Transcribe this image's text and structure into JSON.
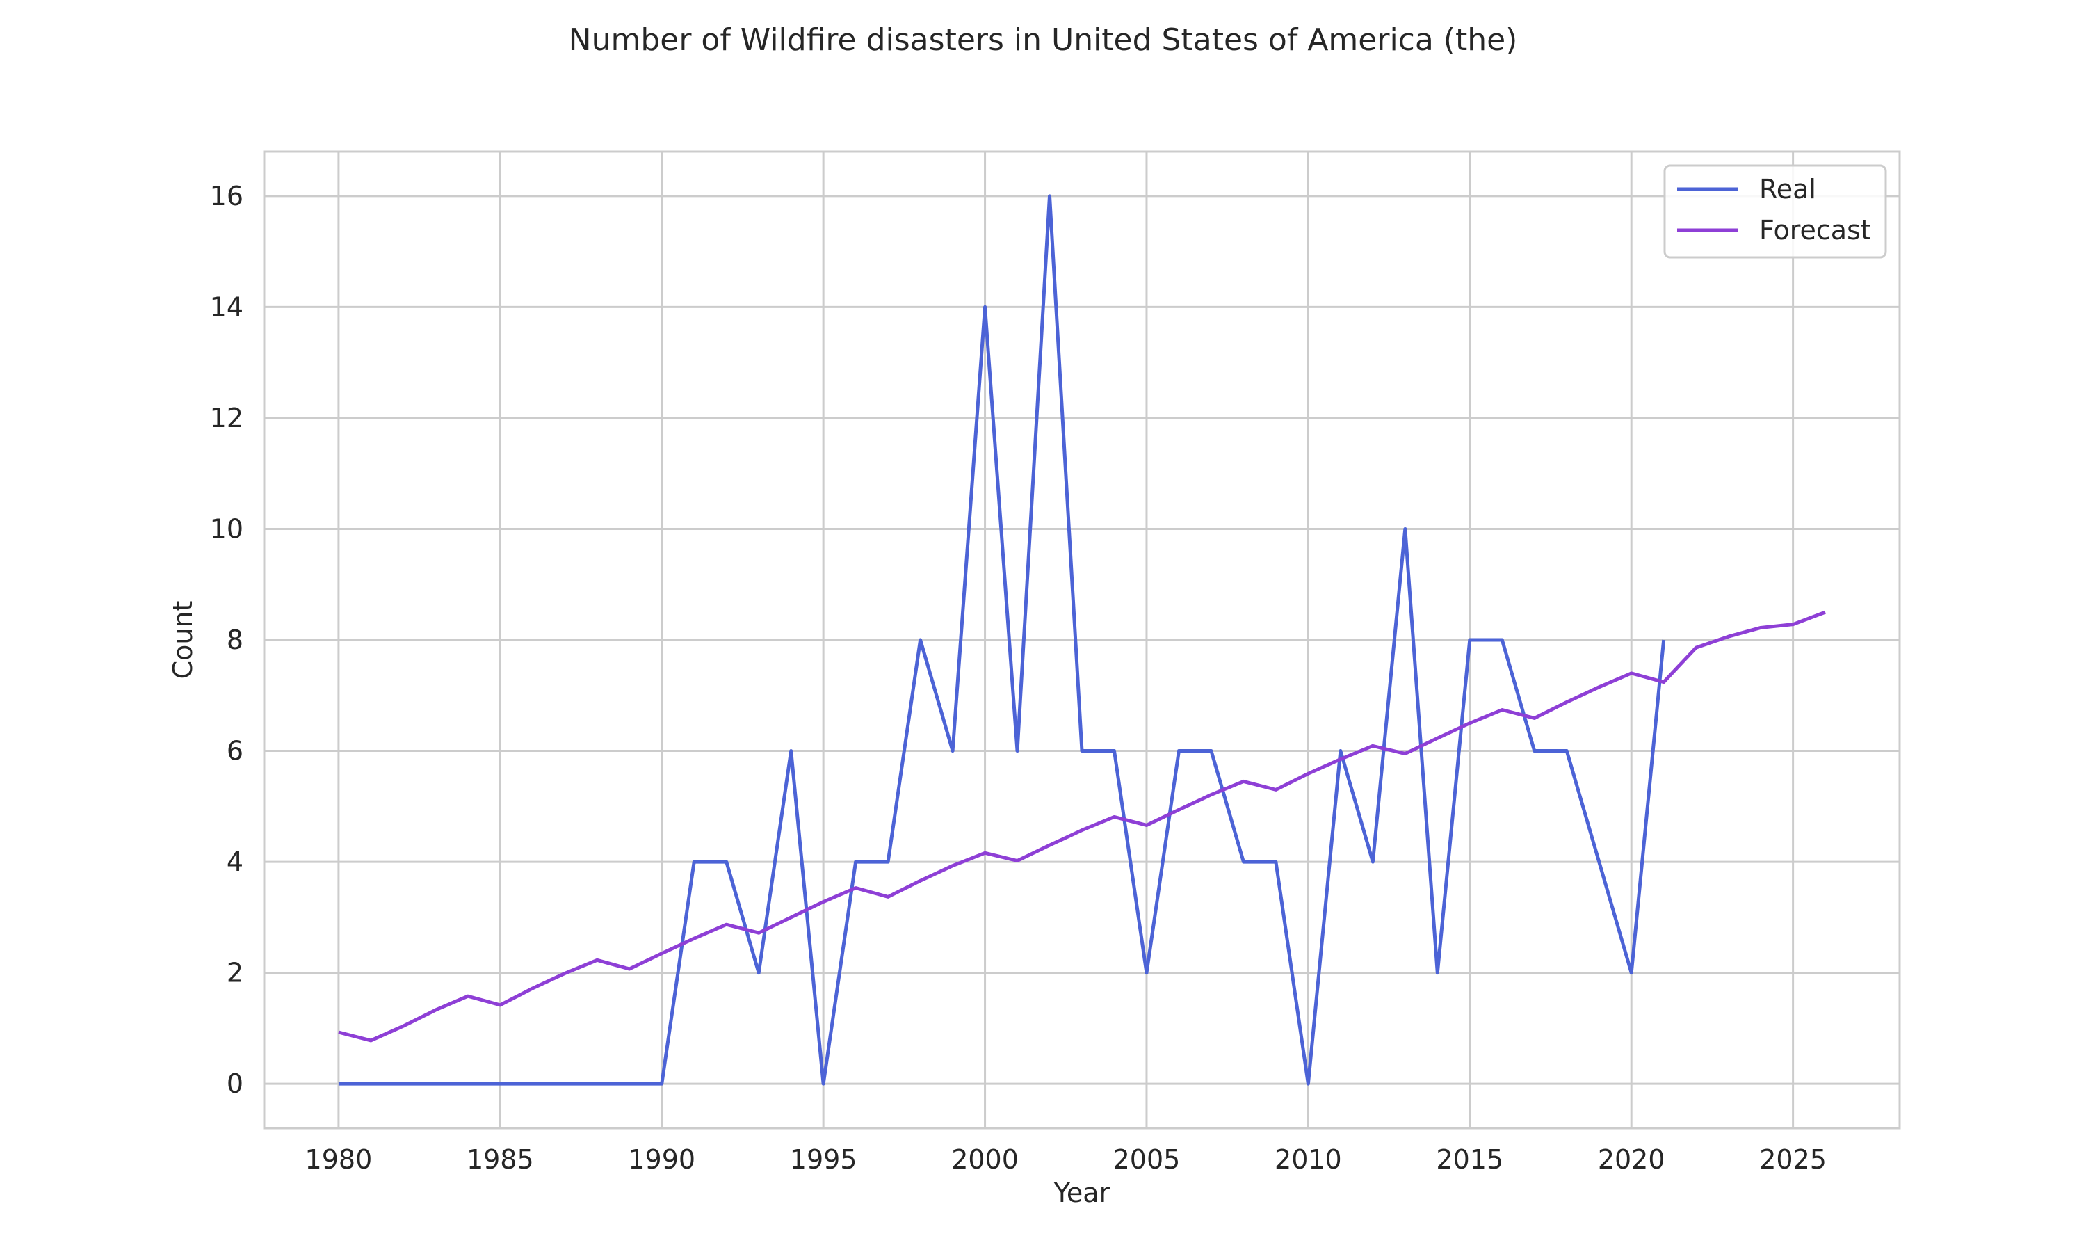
{
  "chart_data": {
    "type": "line",
    "title": "Number of Wildfire disasters in United States of America (the)",
    "xlabel": "Year",
    "ylabel": "Count",
    "xlim": [
      1977.7,
      2028.3
    ],
    "ylim": [
      -0.8,
      16.8
    ],
    "xticks": [
      1980,
      1985,
      1990,
      1995,
      2000,
      2005,
      2010,
      2015,
      2020,
      2025
    ],
    "yticks": [
      0,
      2,
      4,
      6,
      8,
      10,
      12,
      14,
      16
    ],
    "grid": true,
    "legend_position": "top-right",
    "series": [
      {
        "name": "Real",
        "color": "#4c63d6",
        "x": [
          1980,
          1981,
          1982,
          1983,
          1984,
          1985,
          1986,
          1987,
          1988,
          1989,
          1990,
          1991,
          1992,
          1993,
          1994,
          1995,
          1996,
          1997,
          1998,
          1999,
          2000,
          2001,
          2002,
          2003,
          2004,
          2005,
          2006,
          2007,
          2008,
          2009,
          2010,
          2011,
          2012,
          2013,
          2014,
          2015,
          2016,
          2017,
          2018,
          2019,
          2020,
          2021
        ],
        "y": [
          0,
          0,
          0,
          0,
          0,
          0,
          0,
          0,
          0,
          0,
          0,
          4,
          4,
          2,
          6,
          0,
          4,
          4,
          8,
          6,
          14,
          6,
          16,
          6,
          6,
          2,
          6,
          6,
          4,
          4,
          0,
          6,
          4,
          10,
          2,
          8,
          8,
          6,
          6,
          4,
          2,
          8
        ]
      },
      {
        "name": "Forecast",
        "color": "#8e3fd6",
        "x": [
          1980,
          1981,
          1982,
          1983,
          1984,
          1985,
          1986,
          1987,
          1988,
          1989,
          1990,
          1991,
          1992,
          1993,
          1994,
          1995,
          1996,
          1997,
          1998,
          1999,
          2000,
          2001,
          2002,
          2003,
          2004,
          2005,
          2006,
          2007,
          2008,
          2009,
          2010,
          2011,
          2012,
          2013,
          2014,
          2015,
          2016,
          2017,
          2018,
          2019,
          2020,
          2021,
          2022,
          2023,
          2024,
          2025,
          2026
        ],
        "y": [
          0.93,
          0.78,
          1.04,
          1.33,
          1.58,
          1.42,
          1.72,
          1.99,
          2.23,
          2.07,
          2.35,
          2.62,
          2.87,
          2.72,
          3.0,
          3.28,
          3.53,
          3.37,
          3.66,
          3.93,
          4.16,
          4.02,
          4.3,
          4.57,
          4.81,
          4.66,
          4.94,
          5.21,
          5.45,
          5.3,
          5.59,
          5.85,
          6.09,
          5.95,
          6.23,
          6.5,
          6.74,
          6.59,
          6.88,
          7.15,
          7.4,
          7.24,
          7.86,
          8.06,
          8.22,
          8.28,
          8.5
        ]
      }
    ]
  }
}
